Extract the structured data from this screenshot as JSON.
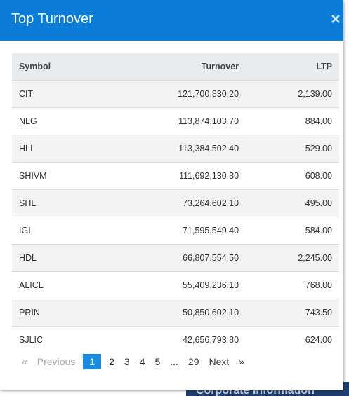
{
  "background": {
    "label": "Corporate Information"
  },
  "modal": {
    "title": "Top Turnover",
    "close": "×"
  },
  "table": {
    "headers": [
      "Symbol",
      "Turnover",
      "LTP"
    ],
    "rows": [
      [
        "CIT",
        "121,700,830.20",
        "2,139.00"
      ],
      [
        "NLG",
        "113,874,103.70",
        "884.00"
      ],
      [
        "HLI",
        "113,384,502.40",
        "529.00"
      ],
      [
        "SHIVM",
        "111,692,130.80",
        "608.00"
      ],
      [
        "SHL",
        "73,264,602.10",
        "495.00"
      ],
      [
        "IGI",
        "71,595,549.40",
        "584.00"
      ],
      [
        "HDL",
        "66,807,554.50",
        "2,245.00"
      ],
      [
        "ALICL",
        "55,409,236.10",
        "768.00"
      ],
      [
        "PRIN",
        "50,850,602.10",
        "743.50"
      ],
      [
        "SJLIC",
        "42,656,793.80",
        "624.00"
      ]
    ]
  },
  "pagination": {
    "first": "«",
    "previous": "Previous",
    "pages": [
      "1",
      "2",
      "3",
      "4",
      "5",
      "...",
      "29"
    ],
    "next": "Next",
    "last": "»",
    "active": 0
  }
}
